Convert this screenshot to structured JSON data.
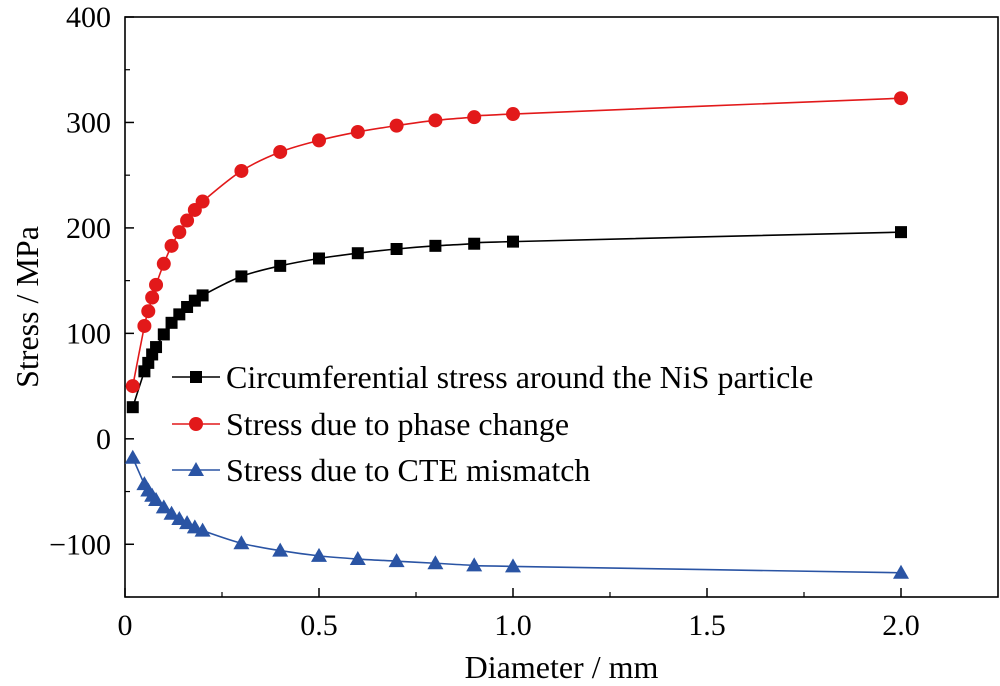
{
  "chart_data": {
    "type": "line",
    "title": "",
    "xlabel": "Diameter / mm",
    "ylabel": "Stress / MPa",
    "xlim": [
      0,
      2.25
    ],
    "ylim": [
      -150,
      400
    ],
    "x_ticks": [
      {
        "value": 0,
        "label": "0"
      },
      {
        "value": 0.5,
        "label": "0.5"
      },
      {
        "value": 1.0,
        "label": "1.0"
      },
      {
        "value": 1.5,
        "label": "1.5"
      },
      {
        "value": 2.0,
        "label": "2.0"
      }
    ],
    "y_ticks": [
      {
        "value": -100,
        "label": "−100"
      },
      {
        "value": 0,
        "label": "0"
      },
      {
        "value": 100,
        "label": "100"
      },
      {
        "value": 200,
        "label": "200"
      },
      {
        "value": 300,
        "label": "300"
      },
      {
        "value": 400,
        "label": "400"
      }
    ],
    "grid": false,
    "legend_position": "center-right",
    "series": [
      {
        "name": "Circumferential stress around the NiS particle",
        "color": "#000000",
        "marker": "square",
        "x": [
          0.02,
          0.05,
          0.06,
          0.07,
          0.08,
          0.1,
          0.12,
          0.14,
          0.16,
          0.18,
          0.2,
          0.3,
          0.4,
          0.5,
          0.6,
          0.7,
          0.8,
          0.9,
          1.0,
          2.0
        ],
        "y": [
          30,
          64,
          72,
          80,
          87,
          99,
          110,
          118,
          125,
          131,
          136,
          154,
          164,
          171,
          176,
          180,
          183,
          185,
          187,
          196
        ]
      },
      {
        "name": "Stress due to phase change",
        "color": "#e2191a",
        "marker": "circle",
        "x": [
          0.02,
          0.05,
          0.06,
          0.07,
          0.08,
          0.1,
          0.12,
          0.14,
          0.16,
          0.18,
          0.2,
          0.3,
          0.4,
          0.5,
          0.6,
          0.7,
          0.8,
          0.9,
          1.0,
          2.0
        ],
        "y": [
          50,
          107,
          121,
          134,
          146,
          166,
          183,
          196,
          207,
          217,
          225,
          254,
          272,
          283,
          291,
          297,
          302,
          305,
          308,
          323
        ]
      },
      {
        "name": "Stress due to CTE mismatch",
        "color": "#2a54a4",
        "marker": "triangle",
        "x": [
          0.02,
          0.05,
          0.06,
          0.07,
          0.08,
          0.1,
          0.12,
          0.14,
          0.16,
          0.18,
          0.2,
          0.3,
          0.4,
          0.5,
          0.6,
          0.7,
          0.8,
          0.9,
          1.0,
          2.0
        ],
        "y": [
          -18,
          -43,
          -49,
          -54,
          -58,
          -65,
          -71,
          -76,
          -80,
          -84,
          -87,
          -99,
          -106,
          -111,
          -114,
          -116,
          -118,
          -120,
          -121,
          -127
        ]
      }
    ]
  }
}
